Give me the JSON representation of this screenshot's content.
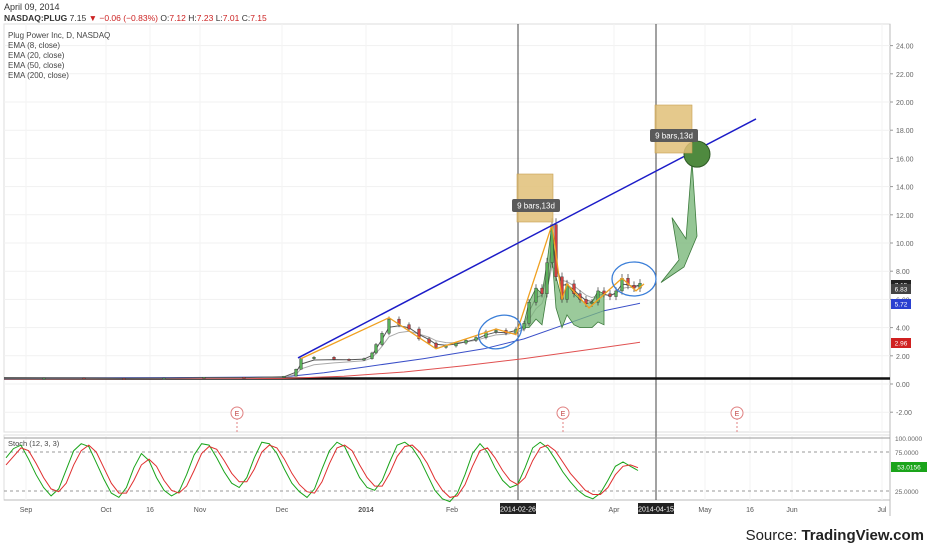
{
  "header": {
    "date": "April 09, 2014",
    "symbol": "NASDAQ:PLUG",
    "last": "7.15",
    "change": "−0.06 (−0.83%)",
    "open_label": "O:",
    "open": "7.12",
    "high_label": "H:",
    "high": "7.23",
    "low_label": "L:",
    "low": "7.01",
    "close_label": "C:",
    "close": "7.15"
  },
  "legend": {
    "title": "Plug Power Inc, D, NASDAQ",
    "items": [
      "EMA (8, close)",
      "EMA (20, close)",
      "EMA (50, close)",
      "EMA (200, close)"
    ]
  },
  "source": {
    "prefix": "Source: ",
    "brand": "TradingView.com"
  },
  "colors": {
    "up": "#5ab05a",
    "down": "#d04040",
    "trend_line": "#1c1cc8",
    "ema8": "#555555",
    "ema20": "#aaaaaa",
    "ema50": "#3a4fc8",
    "ema200": "#e05050",
    "zigzag": "#f0a020",
    "box": "#e0c078",
    "stoch_k": "#1aa41a",
    "stoch_d": "#e03030"
  },
  "chart_data": [
    {
      "type": "line",
      "title": "Plug Power Inc, D, NASDAQ",
      "ylim": [
        -2.5,
        25
      ],
      "y_ticks": [
        "24.00",
        "22.00",
        "20.00",
        "18.00",
        "16.00",
        "14.00",
        "12.00",
        "10.00",
        "8.00",
        "6.00",
        "4.00",
        "2.00",
        "0.00",
        "-2.00"
      ],
      "x_ticks": [
        "Sep",
        "Oct",
        "16",
        "Nov",
        "Dec",
        "2014",
        "Feb",
        "Apr",
        "May",
        "16",
        "Jun",
        "Jul"
      ],
      "highlighted_dates": [
        "2014-02-26",
        "2014-04-15"
      ],
      "price_tags": [
        {
          "value": 7.15,
          "label": "7.15",
          "color": "#222222"
        },
        {
          "value": 6.83,
          "label": "6.83",
          "color": "#444444"
        },
        {
          "value": 5.72,
          "label": "5.72",
          "color": "#2a40d0"
        },
        {
          "value": 2.96,
          "label": "2.96",
          "color": "#d02020"
        }
      ],
      "price_series": [
        {
          "x": 0,
          "y": 0.4
        },
        {
          "x": 40,
          "y": 0.42
        },
        {
          "x": 80,
          "y": 0.4
        },
        {
          "x": 120,
          "y": 0.38
        },
        {
          "x": 160,
          "y": 0.42
        },
        {
          "x": 200,
          "y": 0.48
        },
        {
          "x": 240,
          "y": 0.46
        },
        {
          "x": 280,
          "y": 0.55
        },
        {
          "x": 292,
          "y": 1.05
        },
        {
          "x": 297,
          "y": 1.8
        },
        {
          "x": 310,
          "y": 1.9
        },
        {
          "x": 330,
          "y": 1.75
        },
        {
          "x": 345,
          "y": 1.7
        },
        {
          "x": 360,
          "y": 1.8
        },
        {
          "x": 368,
          "y": 2.2
        },
        {
          "x": 372,
          "y": 2.8
        },
        {
          "x": 378,
          "y": 3.6
        },
        {
          "x": 385,
          "y": 4.6
        },
        {
          "x": 395,
          "y": 4.2
        },
        {
          "x": 405,
          "y": 3.9
        },
        {
          "x": 415,
          "y": 3.2
        },
        {
          "x": 425,
          "y": 2.9
        },
        {
          "x": 432,
          "y": 2.6
        },
        {
          "x": 442,
          "y": 2.7
        },
        {
          "x": 452,
          "y": 2.9
        },
        {
          "x": 462,
          "y": 3.1
        },
        {
          "x": 472,
          "y": 3.3
        },
        {
          "x": 482,
          "y": 3.7
        },
        {
          "x": 492,
          "y": 3.8
        },
        {
          "x": 502,
          "y": 3.6
        },
        {
          "x": 512,
          "y": 3.9
        },
        {
          "x": 520,
          "y": 4.3
        },
        {
          "x": 525,
          "y": 5.8
        },
        {
          "x": 532,
          "y": 6.8
        },
        {
          "x": 538,
          "y": 6.4
        },
        {
          "x": 543,
          "y": 8.6
        },
        {
          "x": 548,
          "y": 11.3
        },
        {
          "x": 552,
          "y": 7.6
        },
        {
          "x": 558,
          "y": 6.0
        },
        {
          "x": 563,
          "y": 7.1
        },
        {
          "x": 570,
          "y": 6.4
        },
        {
          "x": 576,
          "y": 6.0
        },
        {
          "x": 582,
          "y": 5.7
        },
        {
          "x": 588,
          "y": 5.8
        },
        {
          "x": 594,
          "y": 6.6
        },
        {
          "x": 600,
          "y": 6.4
        },
        {
          "x": 606,
          "y": 6.2
        },
        {
          "x": 612,
          "y": 6.6
        },
        {
          "x": 618,
          "y": 7.5
        },
        {
          "x": 624,
          "y": 7.0
        },
        {
          "x": 630,
          "y": 6.8
        },
        {
          "x": 636,
          "y": 7.15
        }
      ],
      "ema50": [
        {
          "x": 0,
          "y": 0.38
        },
        {
          "x": 280,
          "y": 0.5
        },
        {
          "x": 320,
          "y": 0.8
        },
        {
          "x": 360,
          "y": 1.2
        },
        {
          "x": 420,
          "y": 1.8
        },
        {
          "x": 480,
          "y": 2.5
        },
        {
          "x": 520,
          "y": 3.2
        },
        {
          "x": 560,
          "y": 4.2
        },
        {
          "x": 600,
          "y": 5.2
        },
        {
          "x": 636,
          "y": 5.72
        }
      ],
      "ema200": [
        {
          "x": 0,
          "y": 0.36
        },
        {
          "x": 280,
          "y": 0.4
        },
        {
          "x": 340,
          "y": 0.55
        },
        {
          "x": 400,
          "y": 0.85
        },
        {
          "x": 460,
          "y": 1.3
        },
        {
          "x": 520,
          "y": 1.8
        },
        {
          "x": 580,
          "y": 2.4
        },
        {
          "x": 636,
          "y": 2.96
        }
      ],
      "trend_line": [
        {
          "x": 294,
          "y": 1.85
        },
        {
          "x": 752,
          "y": 18.8
        }
      ],
      "horizontal_level": 0.6,
      "zigzag": [
        {
          "x": 297,
          "y": 1.8
        },
        {
          "x": 385,
          "y": 4.7
        },
        {
          "x": 432,
          "y": 2.5
        },
        {
          "x": 492,
          "y": 3.9
        },
        {
          "x": 512,
          "y": 3.5
        },
        {
          "x": 548,
          "y": 11.3
        },
        {
          "x": 558,
          "y": 6.0
        },
        {
          "x": 563,
          "y": 7.1
        },
        {
          "x": 585,
          "y": 5.4
        },
        {
          "x": 618,
          "y": 7.5
        },
        {
          "x": 632,
          "y": 6.6
        },
        {
          "x": 640,
          "y": 7.1
        }
      ],
      "projection": [
        {
          "x": 657,
          "y": 7.2
        },
        {
          "x": 675,
          "y": 8.8
        },
        {
          "x": 668,
          "y": 11.8
        },
        {
          "x": 682,
          "y": 10.3
        },
        {
          "x": 688,
          "y": 15.8
        },
        {
          "x": 693,
          "y": 10.5
        },
        {
          "x": 680,
          "y": 8.3
        }
      ],
      "annotations": [
        "9 bars,13d",
        "9 bars,13d",
        "E",
        "E",
        "E"
      ]
    },
    {
      "type": "line",
      "title": "Stoch (12, 3, 3)",
      "ylim": [
        0,
        100
      ],
      "y_ticks": [
        "100.0000",
        "75.0000",
        "25.0000"
      ],
      "value_tag": "53.0156",
      "series": [
        {
          "name": "K",
          "values": [
            72,
            85,
            90,
            70,
            48,
            30,
            18,
            28,
            55,
            82,
            92,
            88,
            65,
            42,
            22,
            16,
            30,
            58,
            78,
            68,
            44,
            26,
            18,
            24,
            48,
            76,
            92,
            90,
            72,
            52,
            36,
            30,
            44,
            72,
            94,
            92,
            78,
            56,
            36,
            24,
            16,
            28,
            56,
            82,
            94,
            88,
            66,
            44,
            30,
            26,
            40,
            66,
            90,
            94,
            86,
            70,
            48,
            26,
            14,
            10,
            22,
            48,
            78,
            92,
            80,
            58,
            40,
            30,
            34,
            58,
            86,
            94,
            86,
            70,
            52,
            38,
            26,
            18,
            14,
            22,
            40,
            60,
            66,
            60,
            54
          ]
        },
        {
          "name": "D",
          "values": [
            62,
            74,
            86,
            82,
            64,
            44,
            28,
            24,
            36,
            62,
            82,
            90,
            80,
            58,
            36,
            22,
            22,
            40,
            62,
            70,
            60,
            40,
            26,
            22,
            32,
            54,
            78,
            88,
            84,
            68,
            50,
            38,
            38,
            56,
            80,
            90,
            86,
            70,
            50,
            34,
            24,
            22,
            38,
            64,
            86,
            90,
            82,
            62,
            44,
            32,
            32,
            50,
            74,
            88,
            90,
            80,
            64,
            42,
            26,
            16,
            18,
            34,
            60,
            82,
            86,
            72,
            54,
            40,
            34,
            44,
            68,
            86,
            90,
            82,
            66,
            50,
            38,
            26,
            20,
            20,
            30,
            48,
            60,
            62,
            58
          ]
        }
      ]
    }
  ]
}
